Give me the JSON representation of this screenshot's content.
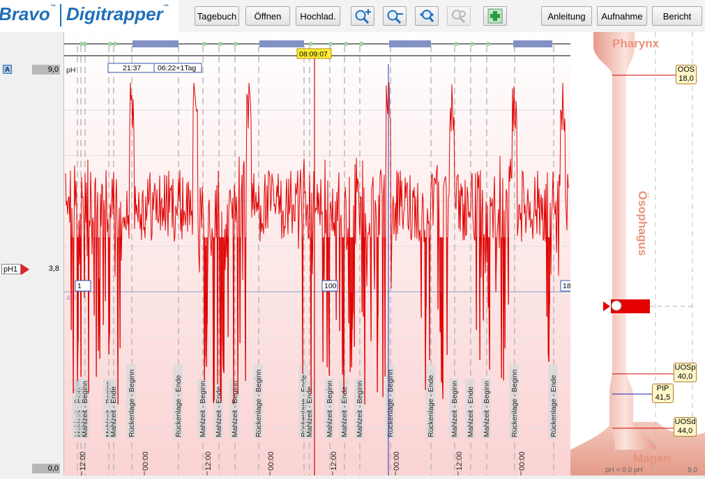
{
  "logo": {
    "brand": "Bravo",
    "tm1": "™",
    "product": "Digitrapper",
    "tm2": "™"
  },
  "toolbar": {
    "diary": "Tagebuch",
    "open": "Öffnen",
    "upload": "Hochlad.",
    "icons": [
      "zoom-in-icon",
      "zoom-out-icon",
      "zoom-fit-icon",
      "zoom-disabled-icon",
      "add-icon"
    ],
    "guide": "Anleitung",
    "record": "Aufnahme",
    "report": "Bericht"
  },
  "left": {
    "channel_button": "A",
    "max_value": "9,0",
    "min_value": "0,0",
    "channel_name": "pH1",
    "channel_value": "3,8"
  },
  "chart": {
    "unit": "pH",
    "cursor_time": "08:09:07",
    "range_start": "21:37",
    "range_end": "06:22+1Tag",
    "threshold_label": "4,0",
    "day_markers": [
      "1",
      "100",
      "18"
    ],
    "time_labels": [
      "12:00",
      "00:00",
      "12:00",
      "00:00",
      "12:00",
      "00:00",
      "12:00",
      "00:00"
    ],
    "events": [
      {
        "x": 19,
        "label": "Mahlzeit - Beginn"
      },
      {
        "x": 24,
        "label": "Mahlzeit - Ende"
      },
      {
        "x": 30,
        "label": "Mahlzeit - Beginn"
      },
      {
        "x": 64,
        "label": "Mahlzeit - Beginn"
      },
      {
        "x": 71,
        "label": "Mahlzeit - Ende"
      },
      {
        "x": 97,
        "label": "Rückenlage - Beginn"
      },
      {
        "x": 164,
        "label": "Rückenlage - Ende"
      },
      {
        "x": 199,
        "label": "Mahlzeit - Beginn"
      },
      {
        "x": 222,
        "label": "Mahlzeit - Ende"
      },
      {
        "x": 245,
        "label": "Mahlzeit - Beginn"
      },
      {
        "x": 279,
        "label": "Rückenlage - Beginn"
      },
      {
        "x": 344,
        "label": "Rückenlage - Ende"
      },
      {
        "x": 352,
        "label": "Mahlzeit - Ende"
      },
      {
        "x": 381,
        "label": "Mahlzeit - Beginn"
      },
      {
        "x": 402,
        "label": "Mahlzeit - Ende"
      },
      {
        "x": 424,
        "label": "Mahlzeit - Beginn"
      },
      {
        "x": 468,
        "label": "Rückenlage - Beginn"
      },
      {
        "x": 526,
        "label": "Rückenlage - Ende"
      },
      {
        "x": 560,
        "label": "Mahlzeit - Beginn"
      },
      {
        "x": 583,
        "label": "Mahlzeit - Ende"
      },
      {
        "x": 606,
        "label": "Mahlzeit - Beginn"
      },
      {
        "x": 646,
        "label": "Rückenlage - Beginn"
      },
      {
        "x": 702,
        "label": "Rückenlage - Ende"
      }
    ]
  },
  "diagram": {
    "pharynx": "Pharynx",
    "esophagus": "Ösophagus",
    "stomach": "Magen",
    "scale_left": "pH = 0,0 pH",
    "scale_right": "9,0",
    "markers": [
      {
        "name": "OOS",
        "value": "18,0"
      },
      {
        "name": "UOSp",
        "value": "40,0"
      },
      {
        "name": "PIP",
        "value": "41,5"
      },
      {
        "name": "UOSd",
        "value": "44,0"
      }
    ]
  },
  "colors": {
    "signal": "#e00000",
    "background_top": "#ffffff",
    "background_bottom": "#fbd3d3",
    "accent": "#1f6fb8",
    "cursor": "#d40000"
  }
}
